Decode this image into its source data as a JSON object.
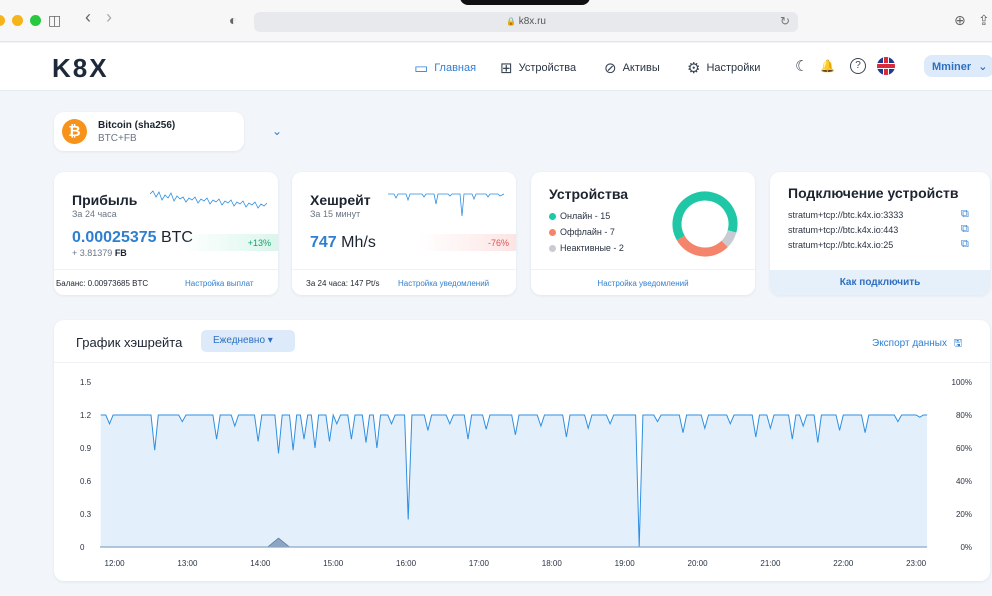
{
  "browser": {
    "url": "k8x.ru",
    "lock_glyph": "🔒",
    "sidebar_glyph": "◫",
    "back_glyph": "‹",
    "forward_glyph": "›",
    "shield_glyph": "◐",
    "reload_glyph": "↻",
    "download_glyph": "⊕",
    "share_glyph": "⇪"
  },
  "header": {
    "logo": "K8X",
    "nav": [
      {
        "label": "Главная",
        "icon": "monitor-icon",
        "glyph": "▭",
        "active": true
      },
      {
        "label": "Устройства",
        "icon": "devices-icon",
        "glyph": "⊞",
        "active": false
      },
      {
        "label": "Активы",
        "icon": "assets-icon",
        "glyph": "⊘",
        "active": false
      },
      {
        "label": "Настройки",
        "icon": "gear-icon",
        "glyph": "⚙",
        "active": false
      }
    ],
    "moon_glyph": "☾",
    "bell_glyph": "🔔",
    "help_glyph": "?",
    "user": "Mminer",
    "user_chevron": "⌄"
  },
  "coin": {
    "badge": "₿",
    "name": "Bitcoin (sha256)",
    "sub": "BTC+FB",
    "chevron": "⌄"
  },
  "profit": {
    "title": "Прибыль",
    "sub": "За 24 часа",
    "value": "0.00025375",
    "unit": "BTC",
    "secondary": "+ 3.81379",
    "secondary_unit": "FB",
    "change": "+13%",
    "balance": "Баланс: 0.00973685 BTC",
    "payout_link": "Настройка выплат"
  },
  "hashrate": {
    "title": "Хешрейт",
    "sub": "За 15 минут",
    "value": "747",
    "unit": "Mh/s",
    "change": "-76%",
    "daily": "За 24 часа: 147 Pt/s",
    "notify_link": "Настройка уведомлений"
  },
  "devices": {
    "title": "Устройства",
    "online": "Онлайн - 15",
    "offline": "Оффлайн - 7",
    "inactive": "Неактивные - 2",
    "online_count": 15,
    "offline_count": 7,
    "inactive_count": 2,
    "notify_link": "Настройка уведомлений",
    "colors": {
      "online": "#1fc7a6",
      "offline": "#f4846b",
      "inactive": "#c8ccd2"
    }
  },
  "connect": {
    "title": "Подключение устройств",
    "urls": [
      "stratum+tcp://btc.k4x.io:3333",
      "stratum+tcp://btc.k4x.io:443",
      "stratum+tcp://btc.k4x.io:25"
    ],
    "copy_glyph": "⧉",
    "button": "Как подключить"
  },
  "chart_section": {
    "title": "График хэшрейта",
    "period": "Ежедневно ▾",
    "export": "Экспорт данных",
    "export_glyph": "🖫"
  },
  "chart_data": {
    "type": "line",
    "x_ticks": [
      "12:00",
      "13:00",
      "14:00",
      "15:00",
      "16:00",
      "17:00",
      "18:00",
      "19:00",
      "20:00",
      "21:00",
      "22:00",
      "23:00"
    ],
    "y_ticks": [
      "1.5",
      "1.2",
      "0.9",
      "0.6",
      "0.3",
      "0"
    ],
    "y2_ticks": [
      "100%",
      "80%",
      "60%",
      "40%",
      "20%",
      "0%"
    ],
    "ylim": [
      0,
      1.5
    ],
    "xlim": [
      11.8,
      23.3
    ],
    "baseline": 1.2,
    "dips": [
      [
        11.93,
        1.12
      ],
      [
        12.55,
        0.88
      ],
      [
        12.93,
        1.14
      ],
      [
        13.4,
        0.98
      ],
      [
        13.65,
        1.1
      ],
      [
        13.97,
        0.96
      ],
      [
        14.25,
        0.85
      ],
      [
        14.45,
        0.88
      ],
      [
        14.6,
        0.98
      ],
      [
        14.75,
        0.9
      ],
      [
        14.95,
        0.96
      ],
      [
        15.05,
        1.12
      ],
      [
        15.25,
        0.98
      ],
      [
        15.45,
        0.95
      ],
      [
        15.6,
        0.9
      ],
      [
        15.8,
        1.12
      ],
      [
        16.03,
        0.25
      ],
      [
        16.3,
        1.06
      ],
      [
        16.6,
        1.12
      ],
      [
        16.85,
        0.98
      ],
      [
        17.1,
        1.07
      ],
      [
        17.5,
        1.02
      ],
      [
        17.85,
        1.1
      ],
      [
        18.2,
        1.0
      ],
      [
        18.5,
        1.08
      ],
      [
        18.8,
        1.12
      ],
      [
        19.2,
        0.0
      ],
      [
        19.45,
        1.14
      ],
      [
        19.8,
        1.04
      ],
      [
        20.1,
        1.08
      ],
      [
        20.45,
        1.12
      ],
      [
        20.8,
        1.0
      ],
      [
        21.0,
        1.08
      ],
      [
        21.3,
        0.98
      ],
      [
        21.45,
        1.1
      ],
      [
        21.65,
        0.95
      ],
      [
        21.95,
        1.06
      ],
      [
        22.3,
        1.04
      ],
      [
        22.75,
        1.14
      ],
      [
        23.05,
        1.18
      ]
    ],
    "secondary_bump": {
      "x": 14.25,
      "height": 0.08
    },
    "grid": false,
    "legend": "none",
    "colors": {
      "line": "#2f8fe0",
      "fill": "#e3f0fc"
    }
  }
}
